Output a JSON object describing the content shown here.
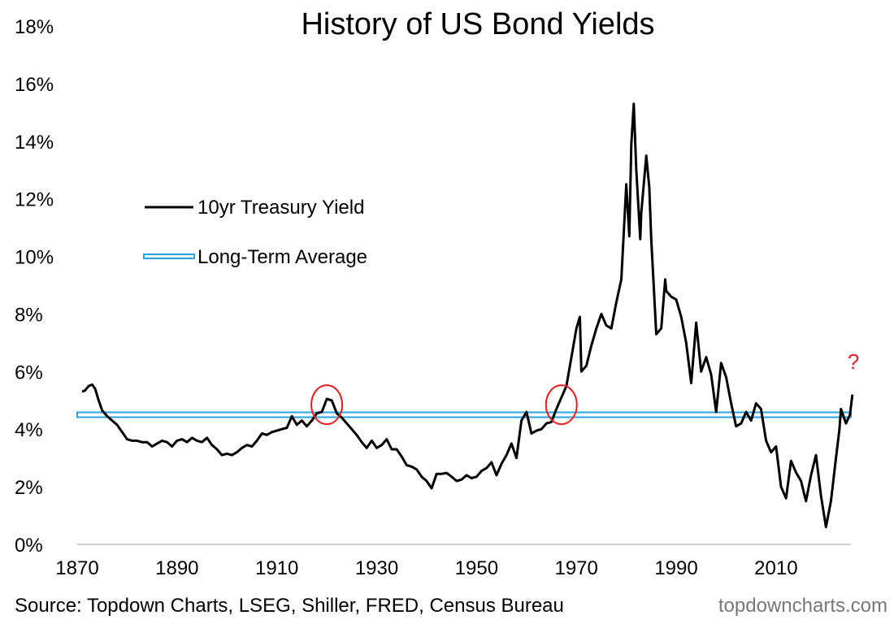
{
  "chart_data": {
    "type": "line",
    "title": "History of US Bond Yields",
    "xlabel": "",
    "ylabel": "",
    "xlim": [
      1870,
      2025
    ],
    "ylim": [
      0,
      18
    ],
    "x_ticks": [
      1870,
      1890,
      1910,
      1930,
      1950,
      1970,
      1990,
      2010
    ],
    "y_ticks": [
      0,
      2,
      4,
      6,
      8,
      10,
      12,
      14,
      16,
      18
    ],
    "y_tick_labels": [
      "0%",
      "2%",
      "4%",
      "6%",
      "8%",
      "10%",
      "12%",
      "14%",
      "16%",
      "18%"
    ],
    "grid": false,
    "legend_position": "upper-left",
    "series": [
      {
        "name": "10yr Treasury Yield",
        "color": "#000000",
        "points": [
          [
            1871,
            5.3
          ],
          [
            1871.6,
            5.35
          ],
          [
            1872.3,
            5.5
          ],
          [
            1873,
            5.55
          ],
          [
            1873.6,
            5.4
          ],
          [
            1874.3,
            5.0
          ],
          [
            1875,
            4.65
          ],
          [
            1876,
            4.45
          ],
          [
            1877,
            4.3
          ],
          [
            1878,
            4.15
          ],
          [
            1879,
            3.9
          ],
          [
            1880,
            3.65
          ],
          [
            1881,
            3.6
          ],
          [
            1882,
            3.6
          ],
          [
            1883,
            3.55
          ],
          [
            1884,
            3.55
          ],
          [
            1885,
            3.4
          ],
          [
            1886,
            3.5
          ],
          [
            1887,
            3.6
          ],
          [
            1888,
            3.55
          ],
          [
            1889,
            3.4
          ],
          [
            1890,
            3.6
          ],
          [
            1891,
            3.65
          ],
          [
            1892,
            3.55
          ],
          [
            1893,
            3.7
          ],
          [
            1894,
            3.6
          ],
          [
            1895,
            3.55
          ],
          [
            1896,
            3.7
          ],
          [
            1897,
            3.45
          ],
          [
            1898,
            3.3
          ],
          [
            1899,
            3.1
          ],
          [
            1900,
            3.15
          ],
          [
            1901,
            3.1
          ],
          [
            1902,
            3.2
          ],
          [
            1903,
            3.35
          ],
          [
            1904,
            3.45
          ],
          [
            1905,
            3.4
          ],
          [
            1906,
            3.6
          ],
          [
            1907,
            3.85
          ],
          [
            1908,
            3.8
          ],
          [
            1909,
            3.9
          ],
          [
            1910,
            3.95
          ],
          [
            1911,
            4.0
          ],
          [
            1912,
            4.05
          ],
          [
            1913,
            4.45
          ],
          [
            1914,
            4.15
          ],
          [
            1915,
            4.3
          ],
          [
            1916,
            4.1
          ],
          [
            1917,
            4.3
          ],
          [
            1918,
            4.55
          ],
          [
            1919,
            4.6
          ],
          [
            1920,
            5.05
          ],
          [
            1921,
            5.0
          ],
          [
            1922,
            4.55
          ],
          [
            1923,
            4.4
          ],
          [
            1924,
            4.2
          ],
          [
            1925,
            4.0
          ],
          [
            1926,
            3.8
          ],
          [
            1927,
            3.55
          ],
          [
            1928,
            3.35
          ],
          [
            1929,
            3.6
          ],
          [
            1930,
            3.35
          ],
          [
            1931,
            3.45
          ],
          [
            1932,
            3.65
          ],
          [
            1933,
            3.3
          ],
          [
            1934,
            3.3
          ],
          [
            1935,
            3.05
          ],
          [
            1936,
            2.75
          ],
          [
            1937,
            2.7
          ],
          [
            1938,
            2.6
          ],
          [
            1939,
            2.35
          ],
          [
            1940,
            2.2
          ],
          [
            1941,
            1.95
          ],
          [
            1942,
            2.45
          ],
          [
            1943,
            2.45
          ],
          [
            1944,
            2.48
          ],
          [
            1945,
            2.35
          ],
          [
            1946,
            2.2
          ],
          [
            1947,
            2.25
          ],
          [
            1948,
            2.4
          ],
          [
            1949,
            2.3
          ],
          [
            1950,
            2.35
          ],
          [
            1951,
            2.55
          ],
          [
            1952,
            2.65
          ],
          [
            1953,
            2.85
          ],
          [
            1954,
            2.4
          ],
          [
            1955,
            2.8
          ],
          [
            1956,
            3.1
          ],
          [
            1957,
            3.5
          ],
          [
            1958,
            3.0
          ],
          [
            1959,
            4.3
          ],
          [
            1960,
            4.6
          ],
          [
            1961,
            3.85
          ],
          [
            1962,
            3.95
          ],
          [
            1963,
            4.0
          ],
          [
            1964,
            4.2
          ],
          [
            1965,
            4.25
          ],
          [
            1966,
            4.7
          ],
          [
            1967,
            5.1
          ],
          [
            1968,
            5.5
          ],
          [
            1969,
            6.5
          ],
          [
            1970,
            7.5
          ],
          [
            1970.7,
            7.9
          ],
          [
            1971,
            6.0
          ],
          [
            1972,
            6.2
          ],
          [
            1973,
            6.9
          ],
          [
            1974,
            7.5
          ],
          [
            1975,
            8.0
          ],
          [
            1976,
            7.6
          ],
          [
            1977,
            7.5
          ],
          [
            1978,
            8.4
          ],
          [
            1979,
            9.2
          ],
          [
            1980,
            12.5
          ],
          [
            1980.6,
            10.7
          ],
          [
            1981,
            13.9
          ],
          [
            1981.5,
            15.3
          ],
          [
            1982,
            13.0
          ],
          [
            1982.8,
            10.6
          ],
          [
            1983,
            11.5
          ],
          [
            1984,
            13.5
          ],
          [
            1984.6,
            12.4
          ],
          [
            1985,
            10.6
          ],
          [
            1986,
            7.3
          ],
          [
            1987,
            7.5
          ],
          [
            1987.8,
            9.2
          ],
          [
            1988,
            8.8
          ],
          [
            1989,
            8.6
          ],
          [
            1990,
            8.5
          ],
          [
            1991,
            7.9
          ],
          [
            1992,
            7.0
          ],
          [
            1993,
            5.6
          ],
          [
            1994,
            7.7
          ],
          [
            1995,
            6.0
          ],
          [
            1996,
            6.5
          ],
          [
            1997,
            5.9
          ],
          [
            1998,
            4.6
          ],
          [
            1999,
            6.3
          ],
          [
            2000,
            5.8
          ],
          [
            2001,
            4.9
          ],
          [
            2002,
            4.1
          ],
          [
            2003,
            4.2
          ],
          [
            2004,
            4.6
          ],
          [
            2005,
            4.3
          ],
          [
            2006,
            4.9
          ],
          [
            2007,
            4.7
          ],
          [
            2008,
            3.6
          ],
          [
            2009,
            3.2
          ],
          [
            2010,
            3.4
          ],
          [
            2011,
            2.0
          ],
          [
            2012,
            1.6
          ],
          [
            2013,
            2.9
          ],
          [
            2014,
            2.5
          ],
          [
            2015,
            2.2
          ],
          [
            2016,
            1.5
          ],
          [
            2017,
            2.4
          ],
          [
            2018,
            3.1
          ],
          [
            2019,
            1.7
          ],
          [
            2020,
            0.6
          ],
          [
            2021,
            1.5
          ],
          [
            2022,
            3.0
          ],
          [
            2022.7,
            4.0
          ],
          [
            2023,
            4.7
          ],
          [
            2024,
            4.2
          ],
          [
            2024.8,
            4.5
          ],
          [
            2025.3,
            5.2
          ]
        ]
      },
      {
        "name": "Long-Term Average",
        "color": "#29a3e0",
        "constant": 4.5
      }
    ],
    "annotations": [
      {
        "type": "circle",
        "x": 1920,
        "y": 4.85,
        "color": "#e81c1c"
      },
      {
        "type": "circle",
        "x": 1967,
        "y": 4.85,
        "color": "#e81c1c"
      },
      {
        "type": "text",
        "x": 2025.5,
        "y": 6.1,
        "text": "?",
        "color": "#e81c1c"
      }
    ],
    "footer": {
      "source": "Source: Topdown Charts, LSEG, Shiller, FRED, Census Bureau",
      "watermark": "topdowncharts.com"
    }
  }
}
